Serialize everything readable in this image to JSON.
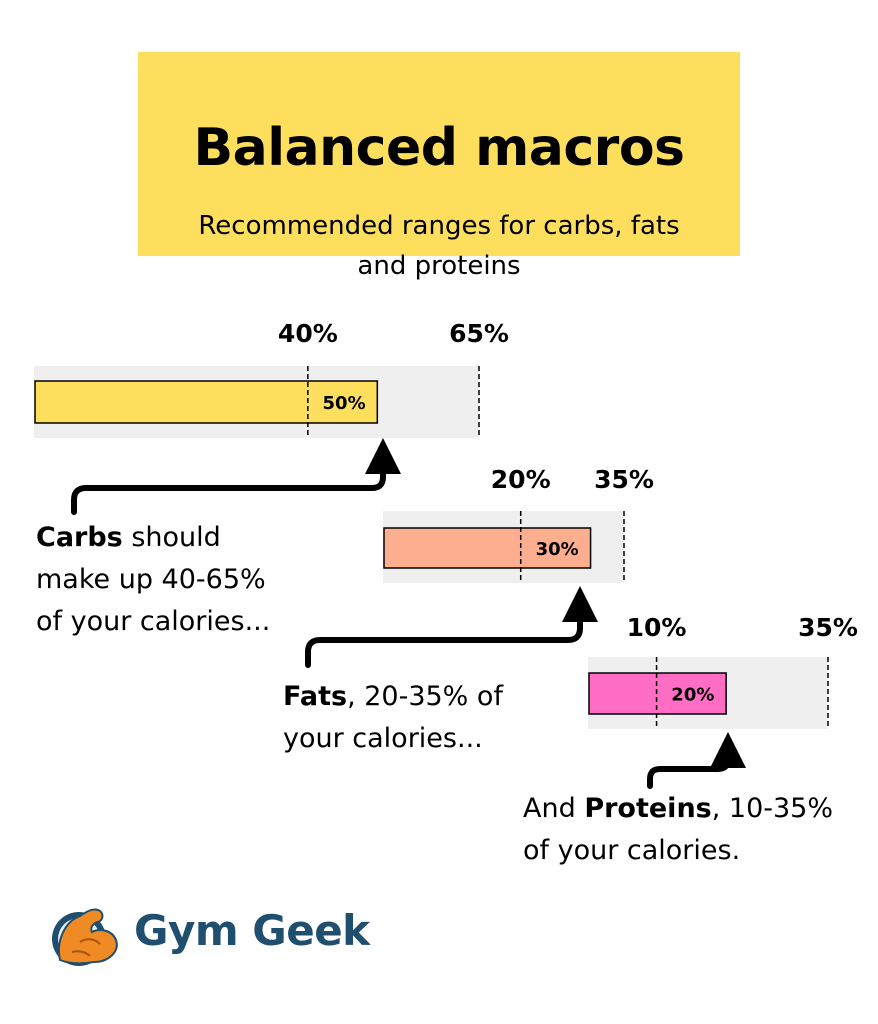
{
  "header": {
    "title": "Balanced macros",
    "subtitle_line1": "Recommended ranges for carbs, fats",
    "subtitle_line2": "and proteins"
  },
  "chart_data": {
    "type": "bar",
    "title": "Balanced macros",
    "subtitle": "Recommended ranges for carbs, fats and proteins",
    "series": [
      {
        "name": "Carbs",
        "value": 50,
        "value_label": "50%",
        "range": [
          40,
          65
        ],
        "range_labels": [
          "40%",
          "65%"
        ],
        "color": "#fddf5d"
      },
      {
        "name": "Fats",
        "value": 30,
        "value_label": "30%",
        "range": [
          20,
          35
        ],
        "range_labels": [
          "20%",
          "35%"
        ],
        "color": "#fcae8f"
      },
      {
        "name": "Proteins",
        "value": 20,
        "value_label": "20%",
        "range": [
          10,
          35
        ],
        "range_labels": [
          "10%",
          "35%"
        ],
        "color": "#ff6ec4"
      }
    ],
    "unit": "% of calories",
    "track_color": "#efefef",
    "grid": false,
    "legend": "none"
  },
  "captions": {
    "carbs": {
      "bold": "Carbs",
      "rest1": " should",
      "line2": "make up 40-65%",
      "line3": "of your calories..."
    },
    "fats": {
      "bold": "Fats",
      "rest1": ", 20-35% of",
      "line2": "your calories..."
    },
    "proteins": {
      "pre": "And ",
      "bold": "Proteins",
      "rest1": ", 10-35%",
      "line2": "of your calories."
    }
  },
  "brand": {
    "name": "Gym Geek",
    "logo_icon": "flexing-arm-icon",
    "color": "#1f4e6e"
  }
}
